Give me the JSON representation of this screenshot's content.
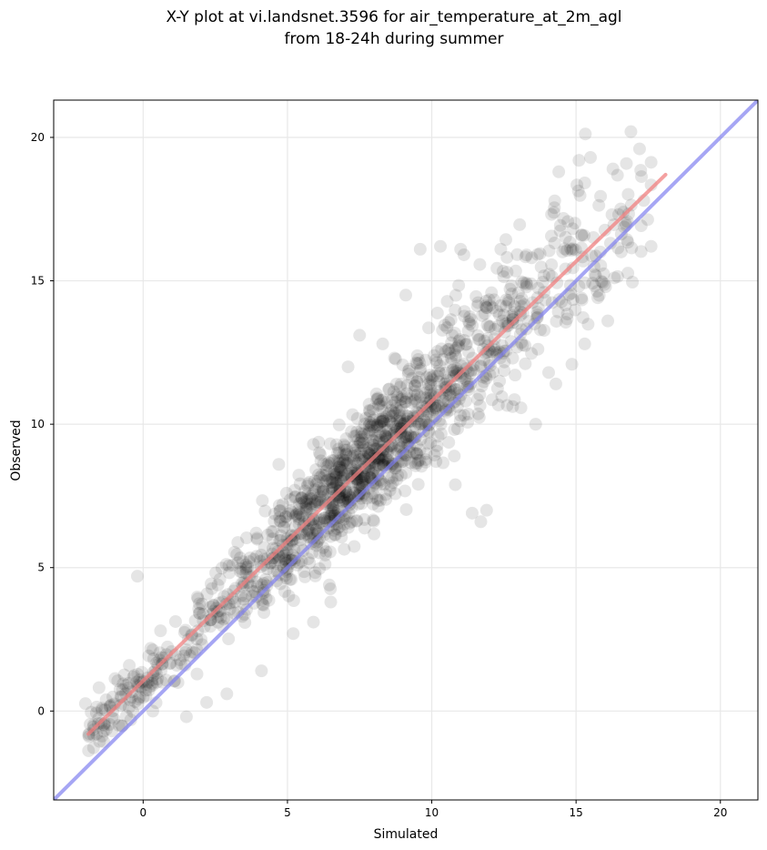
{
  "chart_data": {
    "type": "scatter",
    "title_line1": "X-Y plot at vi.landsnet.3596 for air_temperature_at_2m_agl",
    "title_line2": "from 18-24h during summer",
    "xlabel": "Simulated",
    "ylabel": "Observed",
    "xlim": [
      -3.1,
      21.3
    ],
    "ylim": [
      -3.1,
      21.3
    ],
    "xticks": [
      0,
      5,
      10,
      15,
      20
    ],
    "yticks": [
      0,
      5,
      10,
      15,
      20
    ],
    "grid": true,
    "regression_line": {
      "x": [
        -1.9,
        18.1
      ],
      "y": [
        -0.8,
        18.7
      ],
      "color": "#f08080"
    },
    "identity_line": {
      "x": [
        -3.1,
        21.3
      ],
      "y": [
        -3.1,
        21.3
      ],
      "color": "#8080f0"
    },
    "point_color": "#000000",
    "point_alpha": 0.1,
    "points_distribution": {
      "count": 1500,
      "x_range": [
        -2,
        17.6
      ],
      "y_range": [
        -2,
        20.2
      ]
    },
    "highlighted_points": [
      [
        -0.2,
        4.7
      ],
      [
        1.5,
        -0.2
      ],
      [
        2.2,
        0.3
      ],
      [
        2.9,
        0.6
      ],
      [
        4.1,
        1.4
      ],
      [
        5.2,
        2.7
      ],
      [
        5.9,
        3.1
      ],
      [
        6.5,
        3.8
      ],
      [
        9.1,
        14.5
      ],
      [
        9.6,
        16.1
      ],
      [
        10.3,
        16.2
      ],
      [
        11.0,
        16.1
      ],
      [
        11.4,
        6.9
      ],
      [
        11.7,
        6.6
      ],
      [
        11.9,
        7.0
      ],
      [
        13.6,
        10.0
      ],
      [
        14.4,
        18.8
      ],
      [
        15.1,
        19.2
      ],
      [
        15.5,
        19.3
      ],
      [
        16.9,
        20.2
      ],
      [
        17.2,
        19.6
      ],
      [
        17.6,
        16.2
      ],
      [
        16.1,
        13.6
      ],
      [
        15.3,
        12.8
      ],
      [
        4.7,
        8.6
      ],
      [
        5.9,
        9.3
      ],
      [
        7.1,
        12.0
      ],
      [
        7.5,
        13.1
      ],
      [
        8.3,
        12.8
      ]
    ]
  }
}
